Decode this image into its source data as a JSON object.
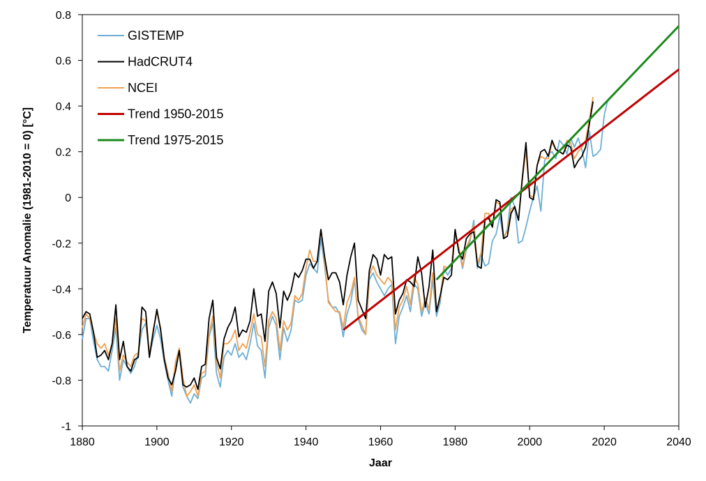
{
  "chart_data": {
    "type": "line",
    "xlabel": "Jaar",
    "ylabel": "Temperatuur Anomalie (1981-2010 = 0) [°C]",
    "xlim": [
      1880,
      2040
    ],
    "ylim": [
      -1,
      0.8
    ],
    "xticks": [
      "1880",
      "1900",
      "1920",
      "1940",
      "1960",
      "1980",
      "2000",
      "2020",
      "2040"
    ],
    "yticks": [
      "0.8",
      "0.6",
      "0.4",
      "0.2",
      "0",
      "-0.2",
      "-0.4",
      "-0.6",
      "-0.8",
      "-1"
    ],
    "grid": false,
    "legend_position": "top-left",
    "series": [
      {
        "name": "GISTEMP",
        "color": "#6aaed6",
        "start_year": 1880,
        "values": [
          -0.62,
          -0.53,
          -0.53,
          -0.63,
          -0.71,
          -0.74,
          -0.74,
          -0.76,
          -0.67,
          -0.57,
          -0.8,
          -0.71,
          -0.74,
          -0.77,
          -0.74,
          -0.68,
          -0.58,
          -0.55,
          -0.69,
          -0.62,
          -0.56,
          -0.62,
          -0.72,
          -0.8,
          -0.87,
          -0.74,
          -0.67,
          -0.83,
          -0.87,
          -0.9,
          -0.86,
          -0.88,
          -0.79,
          -0.78,
          -0.61,
          -0.55,
          -0.77,
          -0.83,
          -0.7,
          -0.67,
          -0.69,
          -0.64,
          -0.7,
          -0.68,
          -0.71,
          -0.64,
          -0.55,
          -0.65,
          -0.67,
          -0.79,
          -0.57,
          -0.52,
          -0.56,
          -0.71,
          -0.57,
          -0.63,
          -0.58,
          -0.45,
          -0.46,
          -0.45,
          -0.34,
          -0.29,
          -0.31,
          -0.33,
          -0.18,
          -0.3,
          -0.45,
          -0.48,
          -0.48,
          -0.51,
          -0.61,
          -0.51,
          -0.46,
          -0.36,
          -0.53,
          -0.58,
          -0.6,
          -0.36,
          -0.33,
          -0.37,
          -0.4,
          -0.43,
          -0.4,
          -0.38,
          -0.64,
          -0.52,
          -0.48,
          -0.43,
          -0.5,
          -0.38,
          -0.4,
          -0.52,
          -0.46,
          -0.51,
          -0.36,
          -0.52,
          -0.46,
          -0.31,
          -0.34,
          -0.31,
          -0.16,
          -0.23,
          -0.31,
          -0.23,
          -0.19,
          -0.1,
          -0.31,
          -0.25,
          -0.3,
          -0.29,
          -0.19,
          -0.16,
          -0.08,
          -0.18,
          -0.14,
          0.0,
          -0.04,
          -0.2,
          -0.19,
          -0.13,
          -0.06,
          0.0,
          0.05,
          -0.06,
          0.16,
          0.19,
          0.2,
          0.17,
          0.25,
          0.23,
          0.19,
          0.26,
          0.22,
          0.26,
          0.21,
          0.13,
          0.29,
          0.18,
          0.19,
          0.21,
          0.36,
          0.43
        ]
      },
      {
        "name": "HadCRUT4",
        "color": "#000000",
        "start_year": 1880,
        "values": [
          -0.53,
          -0.5,
          -0.51,
          -0.59,
          -0.7,
          -0.69,
          -0.67,
          -0.71,
          -0.64,
          -0.47,
          -0.71,
          -0.63,
          -0.74,
          -0.76,
          -0.71,
          -0.7,
          -0.48,
          -0.5,
          -0.7,
          -0.59,
          -0.49,
          -0.58,
          -0.71,
          -0.79,
          -0.82,
          -0.76,
          -0.67,
          -0.82,
          -0.83,
          -0.82,
          -0.79,
          -0.84,
          -0.74,
          -0.73,
          -0.53,
          -0.45,
          -0.7,
          -0.75,
          -0.62,
          -0.57,
          -0.54,
          -0.48,
          -0.61,
          -0.58,
          -0.59,
          -0.54,
          -0.4,
          -0.52,
          -0.51,
          -0.63,
          -0.41,
          -0.37,
          -0.42,
          -0.57,
          -0.41,
          -0.45,
          -0.41,
          -0.33,
          -0.35,
          -0.32,
          -0.27,
          -0.27,
          -0.31,
          -0.28,
          -0.14,
          -0.26,
          -0.36,
          -0.33,
          -0.33,
          -0.37,
          -0.47,
          -0.34,
          -0.26,
          -0.2,
          -0.45,
          -0.49,
          -0.53,
          -0.32,
          -0.25,
          -0.27,
          -0.34,
          -0.25,
          -0.27,
          -0.26,
          -0.51,
          -0.45,
          -0.42,
          -0.36,
          -0.37,
          -0.39,
          -0.26,
          -0.33,
          -0.48,
          -0.39,
          -0.23,
          -0.5,
          -0.43,
          -0.35,
          -0.36,
          -0.34,
          -0.14,
          -0.24,
          -0.27,
          -0.18,
          -0.16,
          -0.15,
          -0.3,
          -0.31,
          -0.1,
          -0.09,
          -0.13,
          -0.01,
          -0.02,
          -0.18,
          -0.17,
          -0.07,
          -0.04,
          -0.1,
          0.08,
          0.24,
          0.0,
          -0.01,
          0.14,
          0.2,
          0.21,
          0.18,
          0.25,
          0.21,
          0.2,
          0.19,
          0.23,
          0.22,
          0.13,
          0.16,
          0.18,
          0.22,
          0.32,
          0.42
        ]
      },
      {
        "name": "NCEI",
        "color": "#f0a050",
        "start_year": 1880,
        "values": [
          -0.57,
          -0.51,
          -0.53,
          -0.59,
          -0.64,
          -0.66,
          -0.64,
          -0.69,
          -0.64,
          -0.53,
          -0.76,
          -0.69,
          -0.72,
          -0.74,
          -0.69,
          -0.68,
          -0.53,
          -0.54,
          -0.69,
          -0.58,
          -0.5,
          -0.57,
          -0.7,
          -0.77,
          -0.85,
          -0.72,
          -0.66,
          -0.79,
          -0.87,
          -0.85,
          -0.82,
          -0.87,
          -0.77,
          -0.76,
          -0.6,
          -0.52,
          -0.72,
          -0.79,
          -0.64,
          -0.64,
          -0.62,
          -0.58,
          -0.67,
          -0.64,
          -0.66,
          -0.59,
          -0.51,
          -0.6,
          -0.61,
          -0.74,
          -0.54,
          -0.5,
          -0.53,
          -0.67,
          -0.54,
          -0.58,
          -0.55,
          -0.43,
          -0.45,
          -0.42,
          -0.31,
          -0.23,
          -0.28,
          -0.28,
          -0.14,
          -0.28,
          -0.46,
          -0.48,
          -0.5,
          -0.5,
          -0.57,
          -0.46,
          -0.42,
          -0.35,
          -0.52,
          -0.56,
          -0.6,
          -0.34,
          -0.3,
          -0.34,
          -0.36,
          -0.38,
          -0.35,
          -0.37,
          -0.58,
          -0.48,
          -0.45,
          -0.39,
          -0.47,
          -0.35,
          -0.38,
          -0.5,
          -0.44,
          -0.49,
          -0.33,
          -0.5,
          -0.44,
          -0.3,
          -0.31,
          -0.3,
          -0.15,
          -0.22,
          -0.3,
          -0.22,
          -0.18,
          -0.12,
          -0.29,
          -0.24,
          -0.07,
          -0.07,
          -0.13,
          -0.02,
          -0.03,
          -0.17,
          -0.15,
          -0.05,
          -0.04,
          -0.1,
          0.07,
          0.21,
          0.01,
          0.0,
          0.14,
          0.18,
          0.17,
          0.17,
          0.24,
          0.21,
          0.2,
          0.19,
          0.25,
          0.24,
          0.17,
          0.2,
          0.22,
          0.25,
          0.34,
          0.44
        ]
      },
      {
        "name": "Trend 1950-2015",
        "color": "#c00000",
        "x": [
          1950,
          2040
        ],
        "y": [
          -0.58,
          0.56
        ]
      },
      {
        "name": "Trend 1975-2015",
        "color": "#1a8a1a",
        "x": [
          1975,
          2040
        ],
        "y": [
          -0.36,
          0.75
        ]
      }
    ]
  }
}
